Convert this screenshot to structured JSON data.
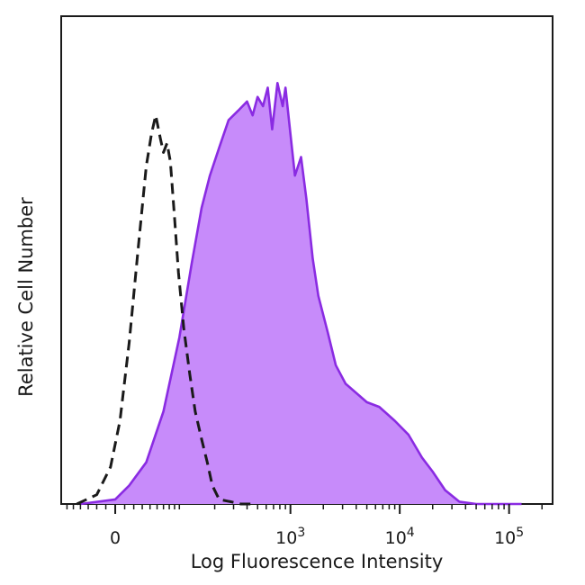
{
  "chart_data": {
    "type": "area",
    "xlabel": "Log Fluorescence Intensity",
    "ylabel": "Relative Cell Number",
    "x_scale": "biexponential",
    "xlim": [
      -70,
      250000
    ],
    "ylim": [
      0,
      100
    ],
    "x_ticks": [
      {
        "value": 0,
        "base": "0",
        "exp": ""
      },
      {
        "value": 1000,
        "base": "10",
        "exp": "3"
      },
      {
        "value": 10000,
        "base": "10",
        "exp": "4"
      },
      {
        "value": 100000,
        "base": "10",
        "exp": "5"
      }
    ],
    "grid": false,
    "series": [
      {
        "style": "filled-purple",
        "fill": "#c78bfa",
        "stroke": "#8a2be2",
        "x": [
          -40,
          0,
          15,
          35,
          60,
          90,
          120,
          150,
          180,
          220,
          270,
          330,
          400,
          450,
          500,
          560,
          620,
          680,
          760,
          850,
          900,
          1000,
          1100,
          1250,
          1400,
          1600,
          1800,
          2200,
          2600,
          3200,
          4000,
          5000,
          6500,
          9000,
          12000,
          16000,
          20000,
          26000,
          35000,
          50000,
          60000,
          70000,
          90000,
          130000
        ],
        "y": [
          0,
          1,
          4,
          9,
          20,
          36,
          52,
          64,
          71,
          77,
          83,
          85,
          87,
          84,
          88,
          86,
          90,
          81,
          91,
          86,
          90,
          80,
          71,
          75,
          66,
          53,
          45,
          37,
          30,
          26,
          24,
          22,
          21,
          18,
          15,
          10,
          7,
          3,
          0.5,
          0,
          0,
          0,
          0,
          0
        ]
      },
      {
        "style": "dashed-black",
        "stroke": "#1a1a1a",
        "x": [
          -45,
          -20,
          -5,
          5,
          15,
          25,
          35,
          42,
          48,
          55,
          60,
          66,
          72,
          80,
          88,
          100,
          115,
          130,
          150,
          170,
          190,
          220,
          280,
          350,
          450
        ],
        "y": [
          0,
          2,
          8,
          18,
          35,
          55,
          73,
          80,
          84,
          79,
          76,
          78,
          74,
          62,
          50,
          38,
          28,
          20,
          14,
          9,
          4,
          1,
          0.5,
          0,
          0
        ]
      }
    ]
  }
}
